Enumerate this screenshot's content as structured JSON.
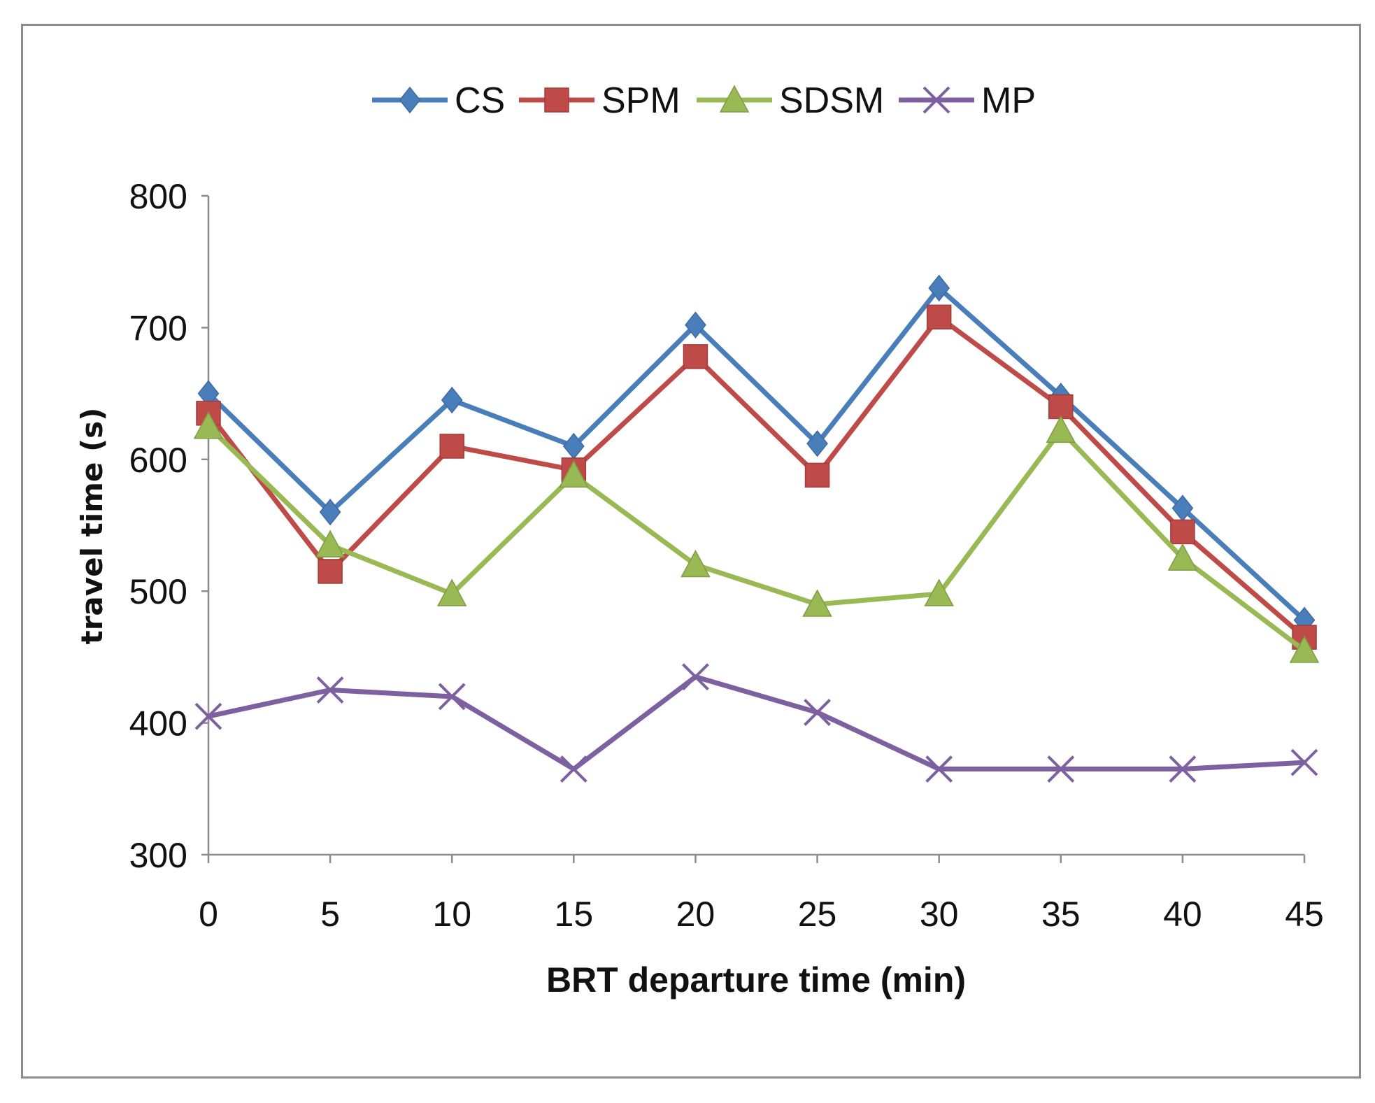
{
  "chart_data": {
    "type": "line",
    "title": "",
    "xlabel": "BRT departure time  (min)",
    "ylabel": "travel time  (s)",
    "x": [
      0,
      5,
      10,
      15,
      20,
      25,
      30,
      35,
      40,
      45
    ],
    "x_tick_labels": [
      "0",
      "5",
      "10",
      "15",
      "20",
      "25",
      "30",
      "35",
      "40",
      "45"
    ],
    "y_tick_labels": [
      "300",
      "400",
      "500",
      "600",
      "700",
      "800"
    ],
    "ylim": [
      300,
      800
    ],
    "y_ticks": [
      300,
      400,
      500,
      600,
      700,
      800
    ],
    "grid": false,
    "legend_position": "top-center",
    "series": [
      {
        "name": "CS",
        "color": "#4a7ebb",
        "marker": "diamond",
        "values": [
          650,
          560,
          645,
          610,
          702,
          612,
          730,
          648,
          563,
          478
        ]
      },
      {
        "name": "SPM",
        "color": "#be4b48",
        "marker": "square",
        "values": [
          635,
          515,
          610,
          592,
          678,
          588,
          708,
          640,
          545,
          465
        ]
      },
      {
        "name": "SDSM",
        "color": "#98b954",
        "marker": "triangle",
        "values": [
          625,
          535,
          498,
          588,
          520,
          490,
          498,
          622,
          525,
          455
        ]
      },
      {
        "name": "MP",
        "color": "#7d60a0",
        "marker": "x",
        "values": [
          405,
          425,
          420,
          365,
          435,
          408,
          365,
          365,
          365,
          370
        ]
      }
    ]
  }
}
